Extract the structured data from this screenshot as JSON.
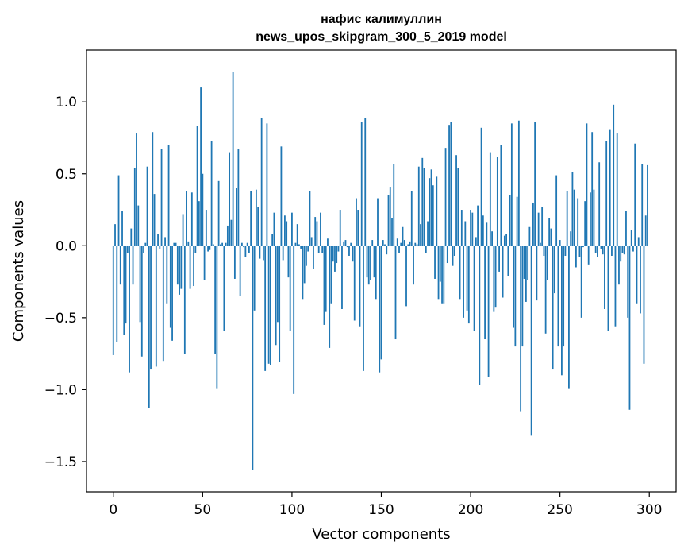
{
  "chart_data": {
    "type": "bar",
    "title_line1": "нафис калимуллин",
    "title_line2": "news_upos_skipgram_300_5_2019 model",
    "xlabel": "Vector components",
    "ylabel": "Components values",
    "xlim": [
      -15,
      315
    ],
    "ylim": [
      -1.71,
      1.36
    ],
    "grid": false,
    "color": "#1f77b4",
    "x_ticks": [
      {
        "value": 0,
        "label": "0"
      },
      {
        "value": 50,
        "label": "50"
      },
      {
        "value": 100,
        "label": "100"
      },
      {
        "value": 150,
        "label": "150"
      },
      {
        "value": 200,
        "label": "200"
      },
      {
        "value": 250,
        "label": "250"
      },
      {
        "value": 300,
        "label": "300"
      }
    ],
    "y_ticks": [
      {
        "value": -1.5,
        "label": "−1.5"
      },
      {
        "value": -1.0,
        "label": "−1.0"
      },
      {
        "value": -0.5,
        "label": "−0.5"
      },
      {
        "value": 0.0,
        "label": "0.0"
      },
      {
        "value": 0.5,
        "label": "0.5"
      },
      {
        "value": 1.0,
        "label": "1.0"
      }
    ],
    "values": [
      -0.76,
      0.15,
      -0.67,
      0.49,
      -0.27,
      0.24,
      -0.62,
      -0.54,
      -0.05,
      -0.88,
      0.12,
      -0.27,
      0.54,
      0.78,
      0.28,
      -0.53,
      -0.77,
      -0.05,
      0.02,
      0.55,
      -1.13,
      -0.86,
      0.79,
      0.36,
      -0.84,
      0.08,
      -0.02,
      0.67,
      -0.8,
      0.06,
      -0.4,
      0.7,
      -0.57,
      -0.66,
      0.02,
      0.02,
      -0.27,
      -0.34,
      -0.3,
      0.22,
      -0.75,
      0.38,
      0.03,
      -0.3,
      0.37,
      -0.28,
      -0.05,
      0.83,
      0.31,
      1.1,
      0.5,
      -0.24,
      0.25,
      -0.04,
      -0.03,
      0.73,
      0.01,
      -0.75,
      -0.99,
      0.45,
      0.01,
      0.02,
      -0.59,
      0.02,
      0.14,
      0.65,
      0.18,
      1.21,
      -0.23,
      0.4,
      0.67,
      -0.35,
      0.02,
      -0.01,
      -0.08,
      0.02,
      -0.05,
      0.38,
      -1.56,
      -0.45,
      0.39,
      0.27,
      -0.09,
      0.89,
      -0.1,
      -0.87,
      0.85,
      -0.82,
      -0.83,
      0.08,
      0.23,
      -0.69,
      -0.53,
      -0.81,
      0.69,
      -0.1,
      0.21,
      0.17,
      -0.22,
      -0.59,
      0.23,
      -1.03,
      0.02,
      0.15,
      0.01,
      -0.02,
      -0.37,
      -0.26,
      -0.14,
      -0.04,
      0.38,
      0.06,
      -0.16,
      0.2,
      0.17,
      -0.05,
      0.23,
      -0.05,
      -0.55,
      -0.46,
      0.05,
      -0.71,
      -0.4,
      -0.11,
      -0.18,
      -0.12,
      -0.04,
      0.25,
      -0.44,
      0.03,
      0.04,
      -0.01,
      -0.07,
      0.02,
      -0.11,
      -0.52,
      0.33,
      0.25,
      -0.56,
      0.86,
      -0.87,
      0.89,
      -0.22,
      -0.27,
      -0.24,
      0.04,
      -0.22,
      -0.37,
      0.33,
      -0.88,
      -0.79,
      0.04,
      0.01,
      -0.06,
      0.35,
      0.41,
      0.19,
      0.57,
      -0.65,
      0.05,
      -0.05,
      0.02,
      0.13,
      0.04,
      -0.42,
      0.01,
      0.03,
      0.38,
      -0.27,
      0.02,
      0.01,
      0.55,
      0.15,
      0.61,
      0.54,
      -0.05,
      0.17,
      0.47,
      0.53,
      0.42,
      -0.23,
      0.48,
      -0.37,
      -0.25,
      -0.4,
      -0.4,
      0.68,
      -0.12,
      0.84,
      0.86,
      -0.14,
      -0.07,
      0.63,
      0.54,
      -0.37,
      0.25,
      -0.5,
      0.17,
      -0.45,
      -0.54,
      0.25,
      0.23,
      -0.59,
      0.06,
      0.28,
      -0.97,
      0.82,
      0.21,
      -0.65,
      0.16,
      -0.91,
      0.65,
      0.1,
      -0.46,
      -0.43,
      0.62,
      -0.18,
      0.7,
      -0.36,
      0.07,
      0.08,
      -0.21,
      0.35,
      0.85,
      -0.57,
      -0.7,
      0.34,
      0.87,
      -1.15,
      -0.7,
      -0.23,
      -0.39,
      -0.24,
      0.13,
      -1.32,
      0.3,
      0.86,
      -0.38,
      0.23,
      0.02,
      0.27,
      -0.07,
      -0.61,
      -0.24,
      0.19,
      0.12,
      -0.86,
      -0.33,
      0.49,
      -0.7,
      0.04,
      -0.9,
      -0.7,
      -0.07,
      0.38,
      -0.99,
      0.1,
      0.51,
      0.39,
      -0.15,
      0.33,
      -0.08,
      -0.5,
      -0.01,
      0.31,
      0.85,
      -0.13,
      0.37,
      0.79,
      0.39,
      -0.05,
      -0.08,
      0.58,
      -0.02,
      -0.06,
      -0.44,
      0.73,
      -0.59,
      0.81,
      -0.07,
      0.98,
      -0.56,
      0.78,
      -0.27,
      -0.11,
      -0.05,
      -0.06,
      0.24,
      -0.5,
      -1.14,
      0.11,
      -0.04,
      0.71,
      -0.4,
      0.06,
      -0.47,
      0.57,
      -0.82,
      0.21,
      0.56
    ]
  }
}
